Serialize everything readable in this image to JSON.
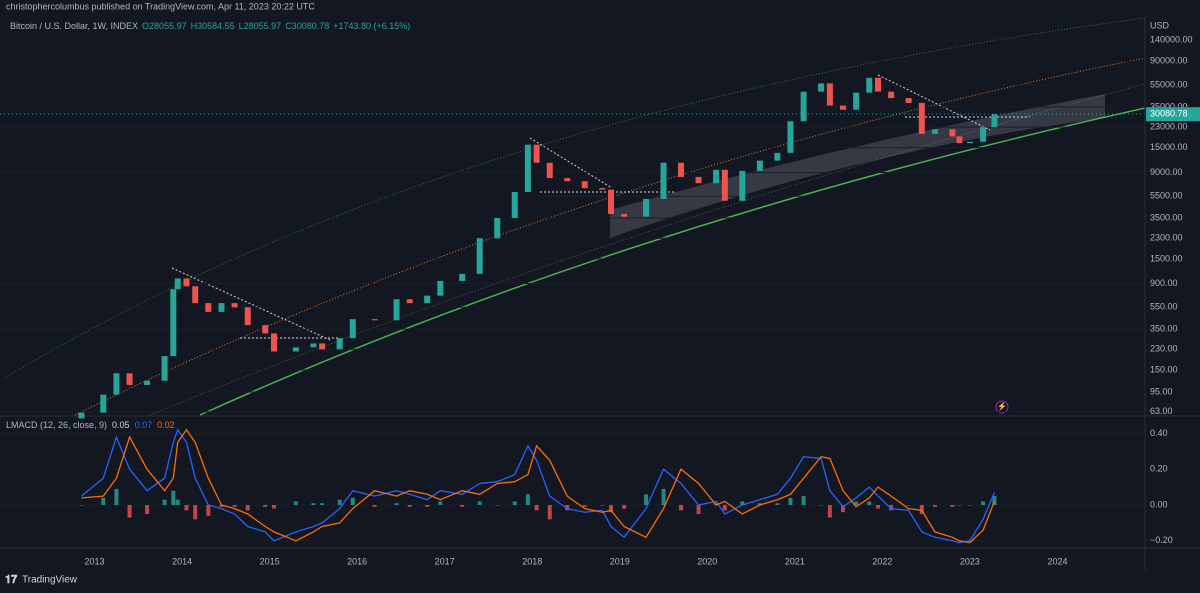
{
  "header": "christophercolumbus published on TradingView.com, Apr 11, 2023 20:22 UTC",
  "footer": "TradingView",
  "chart_data": [
    {
      "type": "candlestick",
      "title": "Bitcoin / U.S. Dollar, 1W, INDEX",
      "ohlc_labels": [
        "O28055.97",
        "H30584.55",
        "L28055.97",
        "C30080.78"
      ],
      "change": "+1743.80 (+6.15%)",
      "currency": "USD",
      "log_scale": true,
      "grid": true,
      "up_color": "#26a69a",
      "down_color": "#ef5350",
      "x": [
        2012.85,
        2013.1,
        2013.25,
        2013.4,
        2013.6,
        2013.8,
        2013.9,
        2013.95,
        2014.05,
        2014.15,
        2014.3,
        2014.45,
        2014.6,
        2014.75,
        2014.95,
        2015.05,
        2015.3,
        2015.5,
        2015.6,
        2015.8,
        2015.95,
        2016.2,
        2016.45,
        2016.6,
        2016.8,
        2016.95,
        2017.2,
        2017.4,
        2017.6,
        2017.8,
        2017.95,
        2018.05,
        2018.2,
        2018.4,
        2018.6,
        2018.8,
        2018.9,
        2019.05,
        2019.3,
        2019.5,
        2019.7,
        2019.9,
        2020.1,
        2020.2,
        2020.4,
        2020.6,
        2020.8,
        2020.95,
        2021.1,
        2021.3,
        2021.4,
        2021.55,
        2021.7,
        2021.85,
        2021.95,
        2022.1,
        2022.3,
        2022.45,
        2022.6,
        2022.8,
        2022.88,
        2023.0,
        2023.15,
        2023.28
      ],
      "open": [
        55,
        62,
        90,
        140,
        110,
        120,
        200,
        800,
        1000,
        850,
        600,
        500,
        600,
        550,
        380,
        320,
        220,
        240,
        260,
        230,
        290,
        430,
        420,
        650,
        600,
        700,
        950,
        1100,
        2300,
        3500,
        6000,
        16000,
        11000,
        8000,
        7500,
        6500,
        6300,
        3800,
        3600,
        5200,
        11000,
        8200,
        7200,
        9500,
        5000,
        9300,
        11500,
        13500,
        26000,
        48000,
        57000,
        36000,
        33000,
        47000,
        64000,
        48000,
        42000,
        38000,
        20000,
        22000,
        19000,
        16500,
        17000,
        23000
      ],
      "close": [
        62,
        90,
        140,
        110,
        120,
        200,
        800,
        1000,
        850,
        600,
        500,
        600,
        550,
        380,
        320,
        220,
        240,
        260,
        230,
        290,
        430,
        420,
        650,
        600,
        700,
        950,
        1100,
        2300,
        3500,
        6000,
        16000,
        11000,
        8000,
        7500,
        6500,
        6300,
        3800,
        3600,
        5200,
        11000,
        8200,
        7200,
        9500,
        5000,
        9300,
        11500,
        13500,
        26000,
        48000,
        57000,
        36000,
        33000,
        47000,
        64000,
        48000,
        42000,
        38000,
        20000,
        22000,
        19000,
        16500,
        17000,
        23000,
        30080.78
      ],
      "xlim": [
        2011.92,
        2025.0
      ],
      "xticks": [
        2013,
        2014,
        2015,
        2016,
        2017,
        2018,
        2019,
        2020,
        2021,
        2022,
        2023,
        2024
      ],
      "ylim": [
        59,
        221000
      ],
      "yticks": [
        {
          "value": 63,
          "label": "63.00"
        },
        {
          "value": 95,
          "label": "95.00"
        },
        {
          "value": 150,
          "label": "150.00"
        },
        {
          "value": 230,
          "label": "230.00"
        },
        {
          "value": 350,
          "label": "350.00"
        },
        {
          "value": 550,
          "label": "550.00"
        },
        {
          "value": 900,
          "label": "900.00"
        },
        {
          "value": 1500,
          "label": "1500.00"
        },
        {
          "value": 2300,
          "label": "2300.00"
        },
        {
          "value": 3500,
          "label": "3500.00"
        },
        {
          "value": 5500,
          "label": "5500.00"
        },
        {
          "value": 9000,
          "label": "9000.00"
        },
        {
          "value": 15000,
          "label": "15000.00"
        },
        {
          "value": 23000,
          "label": "23000.00"
        },
        {
          "value": 35000,
          "label": "35000.00"
        },
        {
          "value": 55000,
          "label": "55000.00"
        },
        {
          "value": 90000,
          "label": "90000.00"
        },
        {
          "value": 140000,
          "label": "140000.00"
        }
      ]
    },
    {
      "type": "macd",
      "title": "LMACD (12, 26, close, 9)",
      "x": [
        2012.85,
        2013.1,
        2013.25,
        2013.4,
        2013.6,
        2013.8,
        2013.9,
        2013.95,
        2014.05,
        2014.15,
        2014.3,
        2014.45,
        2014.6,
        2014.75,
        2014.95,
        2015.05,
        2015.3,
        2015.5,
        2015.6,
        2015.8,
        2015.95,
        2016.2,
        2016.45,
        2016.6,
        2016.8,
        2016.95,
        2017.2,
        2017.4,
        2017.6,
        2017.8,
        2017.95,
        2018.05,
        2018.2,
        2018.4,
        2018.6,
        2018.8,
        2018.9,
        2019.05,
        2019.3,
        2019.5,
        2019.7,
        2019.9,
        2020.1,
        2020.2,
        2020.4,
        2020.6,
        2020.8,
        2020.95,
        2021.1,
        2021.3,
        2021.4,
        2021.55,
        2021.7,
        2021.85,
        2021.95,
        2022.1,
        2022.3,
        2022.45,
        2022.6,
        2022.8,
        2022.88,
        2023.0,
        2023.15,
        2023.28
      ],
      "histogram": {
        "up_color": "#26a69a",
        "down_color": "#ef5350",
        "values": [
          0.0,
          0.04,
          0.09,
          -0.07,
          -0.05,
          0.03,
          0.08,
          0.03,
          -0.03,
          -0.08,
          -0.06,
          -0.01,
          -0.01,
          -0.03,
          -0.01,
          -0.02,
          0.02,
          0.01,
          0.01,
          0.03,
          0.04,
          -0.01,
          0.01,
          -0.01,
          -0.01,
          0.02,
          -0.01,
          0.02,
          0.0,
          0.02,
          0.06,
          -0.03,
          -0.08,
          -0.03,
          -0.01,
          0.0,
          -0.04,
          -0.02,
          0.06,
          0.09,
          -0.03,
          -0.05,
          0.01,
          -0.03,
          0.02,
          0.01,
          0.01,
          0.04,
          0.05,
          0.0,
          -0.07,
          -0.04,
          0.02,
          0.02,
          -0.02,
          -0.03,
          0.0,
          -0.05,
          -0.01,
          -0.01,
          0.0,
          0.0,
          0.02,
          0.05
        ]
      },
      "macd": {
        "color": "#2962ff",
        "values": [
          0.05,
          0.15,
          0.38,
          0.2,
          0.08,
          0.15,
          0.35,
          0.42,
          0.35,
          0.15,
          0.0,
          -0.02,
          -0.05,
          -0.12,
          -0.15,
          -0.2,
          -0.15,
          -0.12,
          -0.1,
          -0.02,
          0.08,
          0.05,
          0.08,
          0.06,
          0.03,
          0.08,
          0.06,
          0.12,
          0.13,
          0.17,
          0.33,
          0.25,
          0.05,
          -0.02,
          -0.04,
          -0.03,
          -0.12,
          -0.18,
          -0.02,
          0.2,
          0.12,
          0.0,
          0.02,
          -0.05,
          0.0,
          0.03,
          0.06,
          0.15,
          0.27,
          0.26,
          0.08,
          -0.01,
          0.04,
          0.1,
          0.05,
          -0.02,
          -0.03,
          -0.15,
          -0.18,
          -0.2,
          -0.21,
          -0.2,
          -0.08,
          0.07
        ]
      },
      "signal": {
        "color": "#ff6d00",
        "values": [
          0.04,
          0.05,
          0.15,
          0.38,
          0.2,
          0.08,
          0.15,
          0.35,
          0.42,
          0.35,
          0.15,
          0.0,
          -0.02,
          -0.05,
          -0.12,
          -0.15,
          -0.2,
          -0.15,
          -0.12,
          -0.1,
          -0.02,
          0.08,
          0.05,
          0.08,
          0.06,
          0.03,
          0.08,
          0.06,
          0.12,
          0.13,
          0.17,
          0.33,
          0.25,
          0.05,
          -0.02,
          -0.04,
          -0.03,
          -0.12,
          -0.18,
          -0.02,
          0.2,
          0.12,
          0.0,
          0.02,
          -0.05,
          0.0,
          0.03,
          0.06,
          0.15,
          0.27,
          0.26,
          0.08,
          -0.01,
          0.04,
          0.1,
          0.05,
          -0.02,
          -0.03,
          -0.15,
          -0.18,
          -0.2,
          -0.21,
          -0.14,
          0.02
        ]
      },
      "ylim": [
        -0.24,
        0.486
      ],
      "yticks": [
        {
          "value": 0.4,
          "label": "0.40"
        },
        {
          "value": 0.2,
          "label": "0.20"
        },
        {
          "value": 0,
          "label": "0.00"
        },
        {
          "value": -0.2,
          "label": "−0.20"
        }
      ]
    }
  ]
}
